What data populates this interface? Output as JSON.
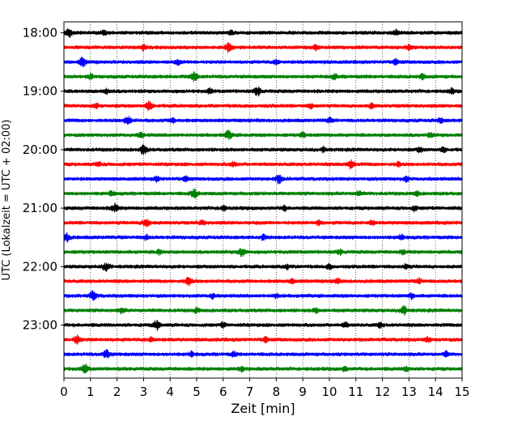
{
  "chart_data": {
    "type": "line",
    "title": "",
    "xlabel": "Zeit  [min]",
    "ylabel": "UTC (Lokalzeit = UTC + 02:00)",
    "xlim": [
      0,
      15
    ],
    "x_ticks": [
      "0",
      "1",
      "2",
      "3",
      "4",
      "5",
      "6",
      "7",
      "8",
      "9",
      "10",
      "11",
      "12",
      "13",
      "14",
      "15"
    ],
    "y_ticks": [
      "18:00",
      "19:00",
      "20:00",
      "21:00",
      "22:00",
      "23:00"
    ],
    "grid": "vertical dotted",
    "colors": [
      "#000000",
      "#ff0000",
      "#0000ff",
      "#008000"
    ],
    "traces": [
      {
        "start": "18:00",
        "color": "#000000",
        "events": [
          0.2,
          6.3,
          1.5,
          12.5
        ]
      },
      {
        "start": "18:15",
        "color": "#ff0000",
        "events": [
          6.2,
          3.0,
          9.5,
          13.0
        ]
      },
      {
        "start": "18:30",
        "color": "#0000ff",
        "events": [
          0.7,
          4.3,
          8.0,
          12.5
        ]
      },
      {
        "start": "18:45",
        "color": "#008000",
        "events": [
          4.9,
          1.0,
          10.2,
          13.5
        ]
      },
      {
        "start": "19:00",
        "color": "#000000",
        "events": [
          7.3,
          1.6,
          5.5,
          14.6
        ]
      },
      {
        "start": "19:15",
        "color": "#ff0000",
        "events": [
          3.2,
          1.2,
          9.3,
          11.6
        ]
      },
      {
        "start": "19:30",
        "color": "#0000ff",
        "events": [
          2.4,
          4.1,
          10.0,
          14.2
        ]
      },
      {
        "start": "19:45",
        "color": "#008000",
        "events": [
          6.2,
          2.9,
          13.8,
          9.0
        ]
      },
      {
        "start": "20:00",
        "color": "#000000",
        "events": [
          3.0,
          9.8,
          13.4,
          14.3
        ]
      },
      {
        "start": "20:15",
        "color": "#ff0000",
        "events": [
          10.8,
          1.3,
          12.6,
          6.4
        ]
      },
      {
        "start": "20:30",
        "color": "#0000ff",
        "events": [
          8.1,
          12.9,
          3.5,
          4.6
        ]
      },
      {
        "start": "20:45",
        "color": "#008000",
        "events": [
          4.9,
          11.1,
          13.3,
          1.8
        ]
      },
      {
        "start": "21:00",
        "color": "#000000",
        "events": [
          1.9,
          8.3,
          13.2,
          6.0
        ]
      },
      {
        "start": "21:15",
        "color": "#ff0000",
        "events": [
          3.1,
          9.6,
          11.6,
          5.2
        ]
      },
      {
        "start": "21:30",
        "color": "#0000ff",
        "events": [
          0.1,
          7.5,
          12.7,
          3.1
        ]
      },
      {
        "start": "21:45",
        "color": "#008000",
        "events": [
          6.7,
          10.4,
          12.8,
          3.6
        ]
      },
      {
        "start": "22:00",
        "color": "#000000",
        "events": [
          1.6,
          10.0,
          8.4,
          12.9
        ]
      },
      {
        "start": "22:15",
        "color": "#ff0000",
        "events": [
          4.7,
          8.6,
          10.3,
          13.4
        ]
      },
      {
        "start": "22:30",
        "color": "#0000ff",
        "events": [
          1.1,
          5.6,
          13.1,
          8.0
        ]
      },
      {
        "start": "22:45",
        "color": "#008000",
        "events": [
          12.8,
          5.0,
          2.2,
          9.5
        ]
      },
      {
        "start": "23:00",
        "color": "#000000",
        "events": [
          3.5,
          10.6,
          6.0,
          11.9
        ]
      },
      {
        "start": "23:15",
        "color": "#ff0000",
        "events": [
          0.5,
          13.7,
          3.3,
          7.6
        ]
      },
      {
        "start": "23:30",
        "color": "#0000ff",
        "events": [
          1.6,
          4.8,
          6.4,
          14.4
        ]
      },
      {
        "start": "23:45",
        "color": "#008000",
        "events": [
          0.8,
          10.6,
          6.7,
          12.9
        ]
      }
    ]
  }
}
